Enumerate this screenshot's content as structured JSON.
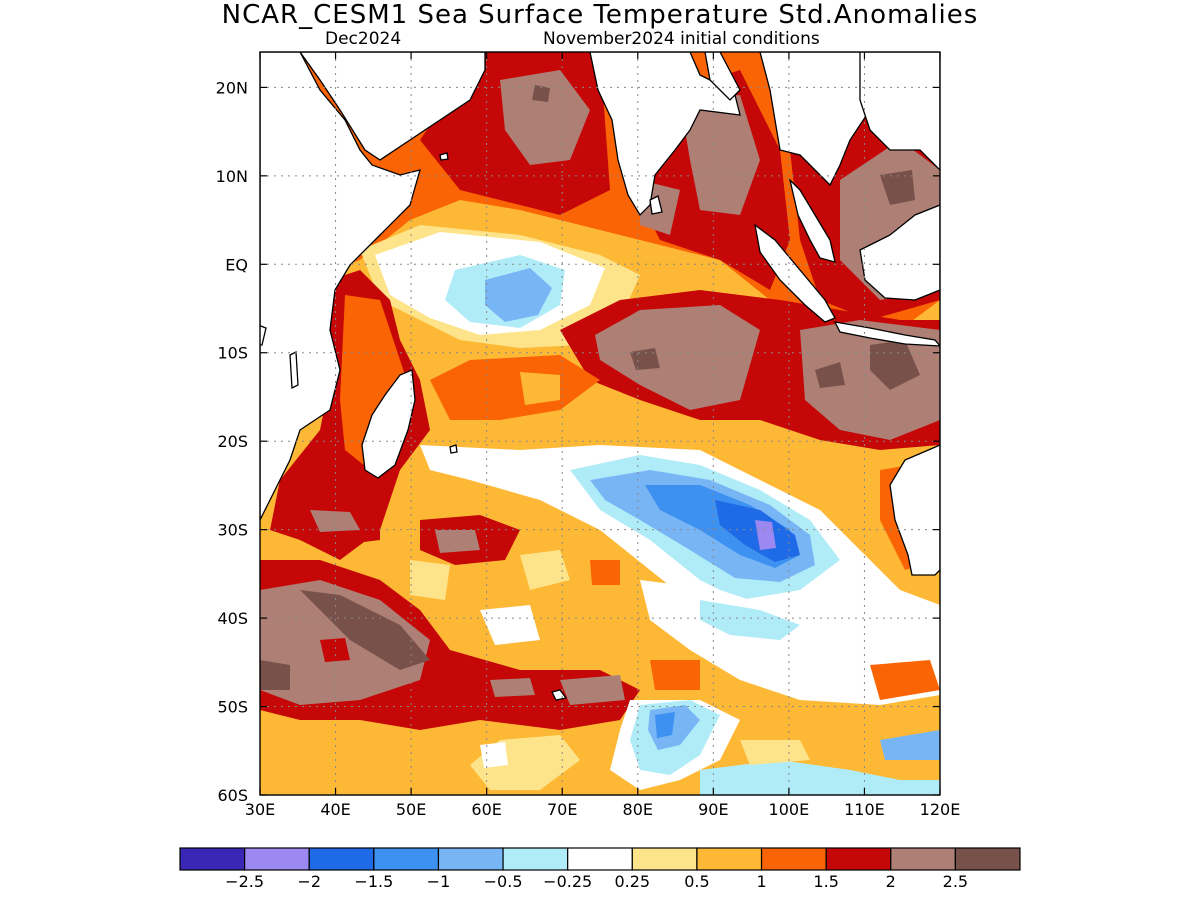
{
  "title": "NCAR_CESM1 Sea Surface Temperature Std.Anomalies",
  "forecast_month": "Dec2024",
  "initial_conditions": "November2024 initial conditions",
  "map": {
    "lon_labels": [
      "30E",
      "40E",
      "50E",
      "60E",
      "70E",
      "80E",
      "90E",
      "100E",
      "110E",
      "120E"
    ],
    "lat_labels": [
      "20N",
      "10N",
      "EQ",
      "10S",
      "20S",
      "30S",
      "40S",
      "50S",
      "60S"
    ],
    "lon_range": [
      30,
      120
    ],
    "lat_range": [
      -60,
      24
    ]
  },
  "colorbar": {
    "labels": [
      "−2.5",
      "−2",
      "−1.5",
      "−1",
      "−0.5",
      "−0.25",
      "0.25",
      "0.5",
      "1",
      "1.5",
      "2",
      "2.5"
    ],
    "colors": [
      "#3a27b5",
      "#9b88f0",
      "#1f6ae6",
      "#3d91f0",
      "#78b5f5",
      "#b0ecf8",
      "#ffffff",
      "#fde48a",
      "#fdb936",
      "#fb6405",
      "#c50707",
      "#ae7f74",
      "#78524a"
    ]
  },
  "colors": {
    "ocean_bg": "#fdb936",
    "land": "#ffffff",
    "coast": "#000000"
  }
}
